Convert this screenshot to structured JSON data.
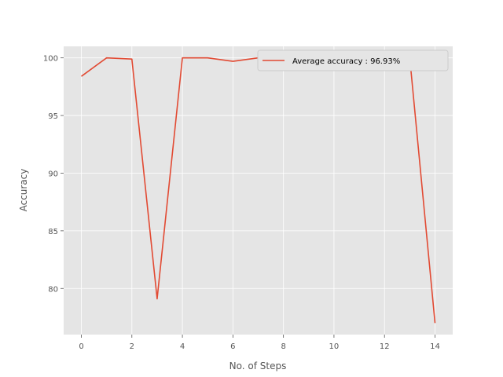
{
  "chart_data": {
    "type": "line",
    "xlabel": "No. of Steps",
    "ylabel": "Accuracy",
    "xlim": [
      -0.7,
      14.7
    ],
    "ylim": [
      76.0,
      101.0
    ],
    "xticks": [
      0,
      2,
      4,
      6,
      8,
      10,
      12,
      14
    ],
    "yticks": [
      80,
      85,
      90,
      95,
      100
    ],
    "grid": true,
    "legend_position": "top-right",
    "colors": {
      "plot_bg": "#e5e5e5",
      "grid": "#ffffff",
      "line": "#e24a33",
      "tick": "#555555"
    },
    "series": [
      {
        "name": "Average accuracy : 96.93%",
        "x": [
          0,
          1,
          2,
          3,
          4,
          5,
          6,
          7,
          8,
          9,
          10,
          11,
          12,
          13,
          14
        ],
        "values": [
          98.4,
          100.0,
          99.9,
          79.1,
          100.0,
          100.0,
          99.7,
          100.0,
          100.0,
          100.0,
          100.0,
          100.0,
          100.0,
          100.0,
          77.0
        ]
      }
    ]
  }
}
